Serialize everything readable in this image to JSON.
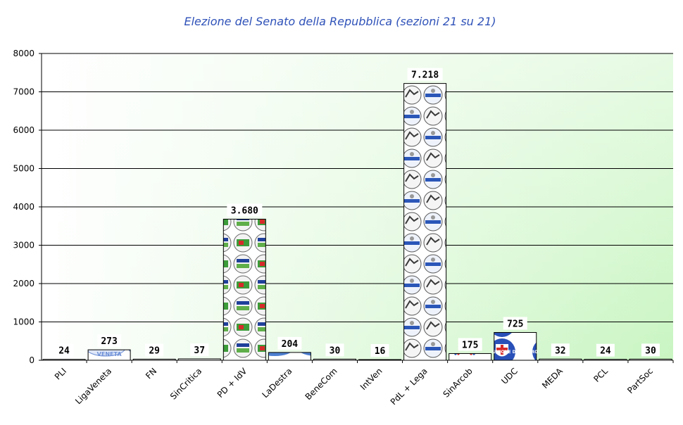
{
  "chart_data": {
    "type": "bar",
    "title": "Elezione del Senato della Repubblica (sezioni 21 su 21)",
    "xlabel": "",
    "ylabel": "",
    "ylim": [
      0,
      8000
    ],
    "yticks": [
      0,
      1000,
      2000,
      3000,
      4000,
      5000,
      6000,
      7000,
      8000
    ],
    "grid": true,
    "categories": [
      "PLI",
      "LigaVeneta",
      "FN",
      "SinCritica",
      "PD + IdV",
      "LaDestra",
      "BeneCom",
      "IntVen",
      "PdL + Lega",
      "SinArcob",
      "UDC",
      "MEDA",
      "PCL",
      "PartSoc"
    ],
    "values": [
      24,
      273,
      29,
      37,
      3680,
      204,
      30,
      16,
      7218,
      175,
      725,
      32,
      24,
      30
    ],
    "data_labels": [
      "24",
      "273",
      "29",
      "37",
      "3.680",
      "204",
      "30",
      "16",
      "7.218",
      "175",
      "725",
      "32",
      "24",
      "30"
    ],
    "bar_styles": [
      "plain",
      "liga",
      "plain",
      "plain",
      "pd",
      "destra",
      "plain",
      "plain",
      "pdl",
      "arcob",
      "udc",
      "plain",
      "plain",
      "plain"
    ],
    "logo_texts": {
      "liga": "VENETA",
      "udc": "UNIONE DI CENTRO"
    },
    "colors": {
      "title": "#2f52b8",
      "plot_bg_light": "#ffffff",
      "plot_bg_green": "#c9f5c2",
      "bar_fill": "#ffffff",
      "pd_green": "#3d9c3a",
      "pd_red": "#d62a2a",
      "pdl_blue": "#4f76c9",
      "udc_blue": "#2950b8",
      "liga_blue": "#6d8fd6"
    }
  }
}
